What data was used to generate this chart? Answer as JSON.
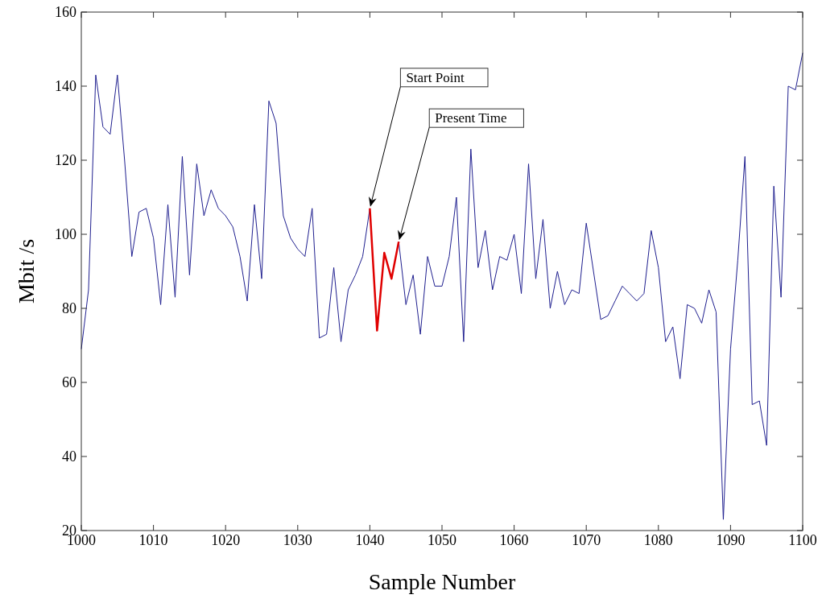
{
  "chart_data": {
    "type": "line",
    "xlabel": "Sample Number",
    "ylabel": "Mbit /s",
    "series": [
      {
        "color": "#1f1f8f",
        "x": [
          1000,
          1001,
          1002,
          1003,
          1004,
          1005,
          1006,
          1007,
          1008,
          1009,
          1010,
          1011,
          1012,
          1013,
          1014,
          1015,
          1016,
          1017,
          1018,
          1019,
          1020,
          1021,
          1022,
          1023,
          1024,
          1025,
          1026,
          1027,
          1028,
          1029,
          1030,
          1031,
          1032,
          1033,
          1034,
          1035,
          1036,
          1037,
          1038,
          1039,
          1040,
          1041,
          1042,
          1043,
          1044,
          1045,
          1046,
          1047,
          1048,
          1049,
          1050,
          1051,
          1052,
          1053,
          1054,
          1055,
          1056,
          1057,
          1058,
          1059,
          1060,
          1061,
          1062,
          1063,
          1064,
          1065,
          1066,
          1067,
          1068,
          1069,
          1070,
          1071,
          1072,
          1073,
          1074,
          1075,
          1076,
          1077,
          1078,
          1079,
          1080,
          1081,
          1082,
          1083,
          1084,
          1085,
          1086,
          1087,
          1088,
          1089,
          1090,
          1091,
          1092,
          1093,
          1094,
          1095,
          1096,
          1097,
          1098,
          1099,
          1100
        ],
        "values": [
          69,
          85,
          143,
          129,
          127,
          143,
          120,
          94,
          106,
          107,
          99,
          81,
          108,
          83,
          121,
          89,
          119,
          105,
          112,
          107,
          105,
          102,
          94,
          82,
          108,
          88,
          136,
          130,
          105,
          99,
          96,
          94,
          107,
          72,
          73,
          91,
          71,
          85,
          89,
          94,
          107,
          null,
          null,
          null,
          98,
          81,
          89,
          73,
          94,
          86,
          86,
          94,
          110,
          71,
          123,
          91,
          101,
          85,
          94,
          93,
          100,
          84,
          119,
          88,
          104,
          80,
          90,
          81,
          85,
          84,
          103,
          90,
          77,
          78,
          82,
          86,
          84,
          82,
          84,
          101,
          91,
          71,
          75,
          61,
          81,
          80,
          76,
          85,
          79,
          23,
          69,
          93,
          121,
          54,
          55,
          43,
          113,
          83,
          140,
          139,
          149
        ]
      },
      {
        "color": "#e00000",
        "x": [
          1040,
          1041,
          1042,
          1043,
          1044
        ],
        "values": [
          107,
          74,
          95,
          88,
          98
        ]
      }
    ],
    "xlim": [
      1000,
      1100
    ],
    "xticks": [
      1000,
      1010,
      1020,
      1030,
      1040,
      1050,
      1060,
      1070,
      1080,
      1090,
      1100
    ],
    "ylim": [
      20,
      160
    ],
    "yticks": [
      20,
      40,
      60,
      80,
      100,
      120,
      140,
      160
    ],
    "annotations": [
      "Start Point",
      "Present Time"
    ],
    "grid": false,
    "marker": "none",
    "line_style": "solid"
  }
}
